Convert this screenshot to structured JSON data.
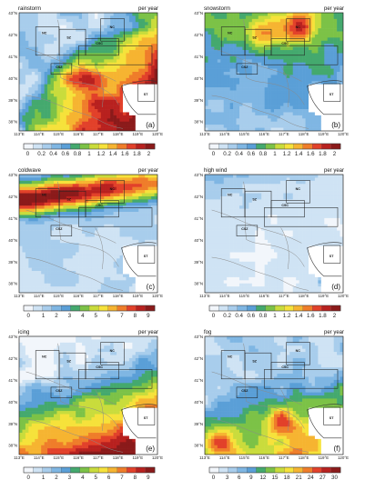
{
  "figure": {
    "panels": [
      {
        "id": "a",
        "title": "rainstorm",
        "unit": "per year",
        "letter": "(a)",
        "lat_labels": [
          "43°N",
          "42°N",
          "41°N",
          "40°N",
          "39°N",
          "38°N"
        ],
        "lon_labels": [
          "113°E",
          "114°E",
          "115°E",
          "116°E",
          "117°E",
          "118°E",
          "119°E",
          "120°E"
        ],
        "regions": [
          "NC",
          "SZ",
          "CSC",
          "CSZ",
          "ST",
          "NC"
        ],
        "colorbar": {
          "ticks": [
            "0",
            "0.2",
            "0.4",
            "0.6",
            "0.8",
            "1",
            "1.2",
            "1.4",
            "1.6",
            "1.8",
            "2"
          ],
          "colors": [
            "#f2f6fb",
            "#cfe3f4",
            "#a8cdec",
            "#7fb6e3",
            "#5a9fd7",
            "#44a96e",
            "#7cc247",
            "#c9dc3c",
            "#f6e23b",
            "#f6b431",
            "#ef7d2a",
            "#e2412a",
            "#b8211f",
            "#8b1a1a"
          ]
        }
      },
      {
        "id": "b",
        "title": "snowstorm",
        "unit": "per year",
        "letter": "(b)",
        "lat_labels": [
          "43°N",
          "42°N",
          "41°N",
          "40°N",
          "39°N",
          "38°N"
        ],
        "lon_labels": [
          "113°E",
          "114°E",
          "115°E",
          "116°E",
          "117°E",
          "118°E",
          "119°E",
          "120°E"
        ],
        "regions": [
          "NC",
          "SZ",
          "CSC",
          "CSZ",
          "ST",
          "NC"
        ],
        "colorbar": {
          "ticks": [
            "0",
            "0.2",
            "0.4",
            "0.6",
            "0.8",
            "1",
            "1.2",
            "1.4",
            "1.6",
            "1.8",
            "2"
          ],
          "colors": [
            "#f2f6fb",
            "#cfe3f4",
            "#a8cdec",
            "#7fb6e3",
            "#5a9fd7",
            "#44a96e",
            "#7cc247",
            "#c9dc3c",
            "#f6e23b",
            "#f6b431",
            "#ef7d2a",
            "#e2412a",
            "#b8211f",
            "#8b1a1a"
          ]
        }
      },
      {
        "id": "c",
        "title": "coldwave",
        "unit": "per year",
        "letter": "(c)",
        "lat_labels": [
          "43°N",
          "42°N",
          "41°N",
          "40°N",
          "39°N",
          "38°N"
        ],
        "lon_labels": [
          "113°E",
          "114°E",
          "115°E",
          "116°E",
          "117°E",
          "118°E",
          "119°E",
          "120°E"
        ],
        "regions": [
          "NC",
          "SZ",
          "CSC",
          "CSZ",
          "ST",
          "NC"
        ],
        "colorbar": {
          "ticks": [
            "0",
            "1",
            "2",
            "3",
            "4",
            "5",
            "6",
            "7",
            "8",
            "9"
          ],
          "colors": [
            "#f2f6fb",
            "#cfe3f4",
            "#a8cdec",
            "#7fb6e3",
            "#5a9fd7",
            "#44a96e",
            "#7cc247",
            "#c9dc3c",
            "#f6e23b",
            "#f6b431",
            "#ef7d2a",
            "#e2412a",
            "#b8211f",
            "#8b1a1a"
          ]
        }
      },
      {
        "id": "d",
        "title": "high wind",
        "unit": "per year",
        "letter": "(d)",
        "lat_labels": [
          "43°N",
          "42°N",
          "41°N",
          "40°N",
          "39°N",
          "38°N"
        ],
        "lon_labels": [
          "113°E",
          "114°E",
          "115°E",
          "116°E",
          "117°E",
          "118°E",
          "119°E",
          "120°E"
        ],
        "regions": [
          "NC",
          "SZ",
          "CSC",
          "CSZ",
          "ST",
          "NC"
        ],
        "colorbar": {
          "ticks": [
            "0",
            "0.2",
            "0.4",
            "0.6",
            "0.8",
            "1",
            "1.2",
            "1.4",
            "1.6",
            "1.8",
            "2"
          ],
          "colors": [
            "#f2f6fb",
            "#cfe3f4",
            "#a8cdec",
            "#7fb6e3",
            "#5a9fd7",
            "#44a96e",
            "#7cc247",
            "#c9dc3c",
            "#f6e23b",
            "#f6b431",
            "#ef7d2a",
            "#e2412a",
            "#b8211f",
            "#8b1a1a"
          ]
        }
      },
      {
        "id": "e",
        "title": "icing",
        "unit": "per year",
        "letter": "(e)",
        "lat_labels": [
          "43°N",
          "42°N",
          "41°N",
          "40°N",
          "39°N",
          "38°N"
        ],
        "lon_labels": [
          "113°E",
          "114°E",
          "115°E",
          "116°E",
          "117°E",
          "118°E",
          "119°E",
          "120°E"
        ],
        "regions": [
          "NC",
          "SZ",
          "CSC",
          "CSZ",
          "ST",
          "NC"
        ],
        "colorbar": {
          "ticks": [
            "0",
            "1",
            "2",
            "3",
            "4",
            "5",
            "6",
            "7",
            "8",
            "9"
          ],
          "colors": [
            "#f2f6fb",
            "#cfe3f4",
            "#a8cdec",
            "#7fb6e3",
            "#5a9fd7",
            "#44a96e",
            "#7cc247",
            "#c9dc3c",
            "#f6e23b",
            "#f6b431",
            "#ef7d2a",
            "#e2412a",
            "#b8211f",
            "#8b1a1a"
          ]
        }
      },
      {
        "id": "f",
        "title": "fog",
        "unit": "per year",
        "letter": "(f)",
        "lat_labels": [
          "43°N",
          "42°N",
          "41°N",
          "40°N",
          "39°N",
          "38°N"
        ],
        "lon_labels": [
          "113°E",
          "114°E",
          "115°E",
          "116°E",
          "117°E",
          "118°E",
          "119°E",
          "120°E"
        ],
        "regions": [
          "NC",
          "SZ",
          "CSC",
          "CSZ",
          "ST",
          "NC"
        ],
        "colorbar": {
          "ticks": [
            "0",
            "3",
            "6",
            "9",
            "12",
            "15",
            "18",
            "21",
            "24",
            "27",
            "30"
          ],
          "colors": [
            "#f2f6fb",
            "#cfe3f4",
            "#a8cdec",
            "#7fb6e3",
            "#5a9fd7",
            "#44a96e",
            "#7cc247",
            "#c9dc3c",
            "#f6e23b",
            "#f6b431",
            "#ef7d2a",
            "#e2412a",
            "#b8211f",
            "#8b1a1a"
          ]
        }
      }
    ]
  }
}
